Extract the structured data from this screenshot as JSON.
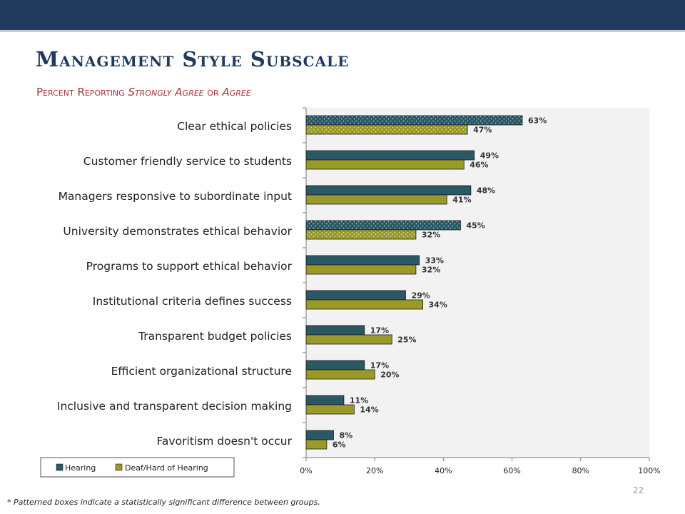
{
  "slide": {
    "title": "Management Style Subscale",
    "subtitle_parts": [
      "Percent Reporting ",
      "Strongly Agree",
      " or ",
      "Agree"
    ],
    "footnote": "* Patterned boxes indicate a statistically significant difference between groups.",
    "page_number": "22"
  },
  "colors": {
    "header_bar": "#1f3a5c",
    "title": "#1f3a5c",
    "subtitle": "#a83232",
    "hearing": "#2a5865",
    "deaf": "#9a9a2a",
    "plot_bg": "#f2f2f2"
  },
  "chart_data": {
    "type": "bar",
    "orientation": "horizontal",
    "categories": [
      "Clear ethical policies",
      "Customer friendly service to students",
      "Managers responsive to subordinate input",
      "University demonstrates ethical behavior",
      "Programs to support ethical behavior",
      "Institutional criteria defines success",
      "Transparent budget policies",
      "Efficient organizational structure",
      "Inclusive and transparent decision making",
      "Favoritism doesn't occur"
    ],
    "series": [
      {
        "name": "Hearing",
        "values": [
          63,
          49,
          48,
          45,
          33,
          29,
          17,
          17,
          11,
          8
        ]
      },
      {
        "name": "Deaf/Hard of Hearing",
        "values": [
          47,
          46,
          41,
          32,
          32,
          34,
          25,
          20,
          14,
          6
        ]
      }
    ],
    "patterned": [
      true,
      false,
      false,
      true,
      false,
      false,
      false,
      false,
      false,
      false
    ],
    "value_suffix": "%",
    "xlim": [
      0,
      100
    ],
    "xticks": [
      "0%",
      "20%",
      "40%",
      "60%",
      "80%",
      "100%"
    ],
    "legend_position": "bottom-left",
    "grid": false
  }
}
